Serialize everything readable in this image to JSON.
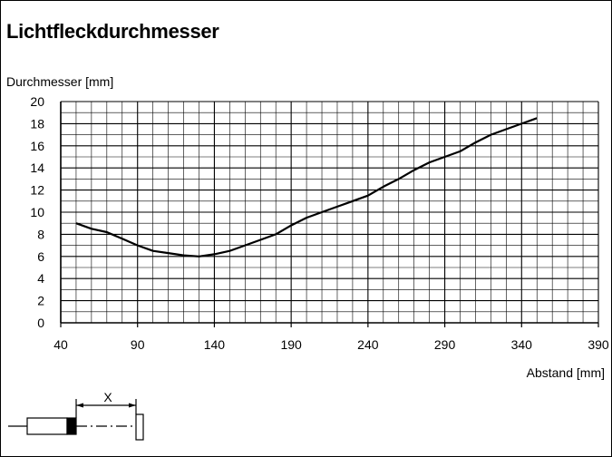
{
  "title": "Lichtfleckdurchmesser",
  "chart_data": {
    "type": "line",
    "title": "Lichtfleckdurchmesser",
    "ylabel": "Durchmesser [mm]",
    "xlabel": "Abstand [mm]",
    "xlim": [
      40,
      390
    ],
    "ylim": [
      0,
      20
    ],
    "x_ticks": [
      40,
      90,
      140,
      190,
      240,
      290,
      340,
      390
    ],
    "y_ticks": [
      0,
      2,
      4,
      6,
      8,
      10,
      12,
      14,
      16,
      18,
      20
    ],
    "grid": true,
    "series": [
      {
        "x": [
          50,
          60,
          70,
          80,
          90,
          100,
          110,
          120,
          130,
          140,
          150,
          160,
          170,
          180,
          190,
          200,
          210,
          220,
          230,
          240,
          250,
          260,
          270,
          280,
          290,
          300,
          310,
          320,
          330,
          340,
          350
        ],
        "y": [
          9.0,
          8.5,
          8.2,
          7.6,
          7.0,
          6.5,
          6.3,
          6.1,
          6.0,
          6.2,
          6.5,
          7.0,
          7.5,
          8.0,
          8.8,
          9.5,
          10.0,
          10.5,
          11.0,
          11.5,
          12.3,
          13.0,
          13.8,
          14.5,
          15.0,
          15.5,
          16.3,
          17.0,
          17.5,
          18.0,
          18.5
        ]
      }
    ]
  },
  "diagram": {
    "label": "X"
  },
  "colors": {
    "line": "#000000",
    "grid": "#000000",
    "background": "#ffffff"
  }
}
